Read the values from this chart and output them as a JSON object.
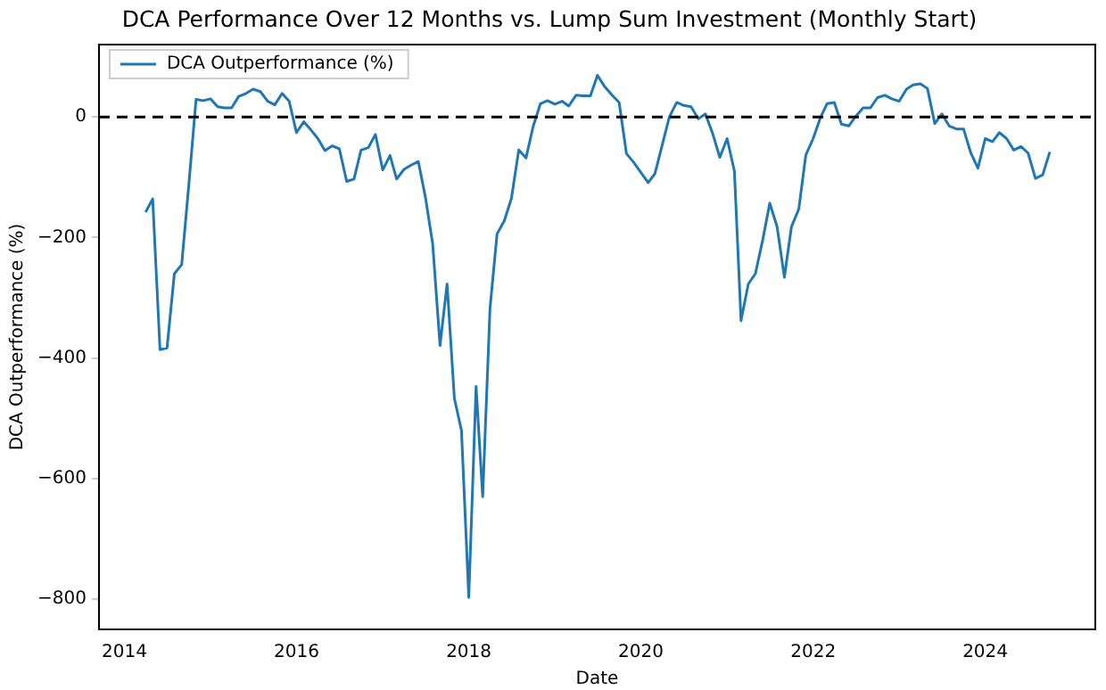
{
  "chart_data": {
    "type": "line",
    "title": "DCA Performance Over 12 Months vs. Lump Sum Investment (Monthly Start)",
    "xlabel": "Date",
    "ylabel": "DCA Outperformance (%)",
    "x": [
      "2014-04",
      "2014-05",
      "2014-06",
      "2014-07",
      "2014-08",
      "2014-09",
      "2014-10",
      "2014-11",
      "2014-12",
      "2015-01",
      "2015-02",
      "2015-03",
      "2015-04",
      "2015-05",
      "2015-06",
      "2015-07",
      "2015-08",
      "2015-09",
      "2015-10",
      "2015-11",
      "2015-12",
      "2016-01",
      "2016-02",
      "2016-03",
      "2016-04",
      "2016-05",
      "2016-06",
      "2016-07",
      "2016-08",
      "2016-09",
      "2016-10",
      "2016-11",
      "2016-12",
      "2017-01",
      "2017-02",
      "2017-03",
      "2017-04",
      "2017-05",
      "2017-06",
      "2017-07",
      "2017-08",
      "2017-09",
      "2017-10",
      "2017-11",
      "2017-12",
      "2018-01",
      "2018-02",
      "2018-03",
      "2018-04",
      "2018-05",
      "2018-06",
      "2018-07",
      "2018-08",
      "2018-09",
      "2018-10",
      "2018-11",
      "2018-12",
      "2019-01",
      "2019-02",
      "2019-03",
      "2019-04",
      "2019-05",
      "2019-06",
      "2019-07",
      "2019-08",
      "2019-09",
      "2019-10",
      "2019-11",
      "2019-12",
      "2020-01",
      "2020-02",
      "2020-03",
      "2020-04",
      "2020-05",
      "2020-06",
      "2020-07",
      "2020-08",
      "2020-09",
      "2020-10",
      "2020-11",
      "2020-12",
      "2021-01",
      "2021-02",
      "2021-03",
      "2021-04",
      "2021-05",
      "2021-06",
      "2021-07",
      "2021-08",
      "2021-09",
      "2021-10",
      "2021-11",
      "2021-12",
      "2022-01",
      "2022-02",
      "2022-03",
      "2022-04",
      "2022-05",
      "2022-06",
      "2022-07",
      "2022-08",
      "2022-09",
      "2022-10",
      "2022-11",
      "2022-12",
      "2023-01",
      "2023-02",
      "2023-03",
      "2023-04",
      "2023-05",
      "2023-06",
      "2023-07",
      "2023-08",
      "2023-09",
      "2023-10",
      "2023-11",
      "2023-12",
      "2024-01",
      "2024-02",
      "2024-03",
      "2024-04",
      "2024-05",
      "2024-06",
      "2024-07",
      "2024-08",
      "2024-09",
      "2024-10"
    ],
    "series": [
      {
        "name": "DCA Outperformance (%)",
        "color": "#1f77b4",
        "values": [
          -158,
          -136,
          -386,
          -383,
          -260,
          -245,
          -114,
          29,
          27,
          30,
          17,
          15,
          15,
          34,
          39,
          46,
          42,
          26,
          20,
          39,
          26,
          -26,
          -8,
          -21,
          -36,
          -56,
          -48,
          -53,
          -107,
          -103,
          -55,
          -51,
          -29,
          -88,
          -64,
          -103,
          -87,
          -80,
          -74,
          -133,
          -211,
          -379,
          -277,
          -467,
          -520,
          -797,
          -447,
          -630,
          -318,
          -194,
          -172,
          -135,
          -55,
          -68,
          -16,
          22,
          27,
          21,
          26,
          18,
          36,
          35,
          35,
          69,
          50,
          36,
          24,
          -61,
          -75,
          -92,
          -109,
          -94,
          -46,
          0,
          24,
          19,
          17,
          -3,
          5,
          -28,
          -67,
          -36,
          -90,
          -338,
          -277,
          -260,
          -204,
          -143,
          -182,
          -266,
          -182,
          -153,
          -63,
          -36,
          -1,
          22,
          24,
          -12,
          -15,
          1,
          15,
          15,
          32,
          36,
          30,
          26,
          46,
          53,
          55,
          47,
          -11,
          5,
          -15,
          -20,
          -20,
          -60,
          -85,
          -36,
          -41,
          -26,
          -36,
          -55,
          -49,
          -60,
          -102,
          -96,
          -58
        ]
      }
    ],
    "xlim": [
      "2013-09-15",
      "2025-04-12"
    ],
    "xticks": [
      "2014",
      "2016",
      "2018",
      "2020",
      "2022",
      "2024"
    ],
    "ylim": [
      -850,
      120
    ],
    "yticks": [
      -800,
      -600,
      -400,
      -200,
      0
    ],
    "ref_lines": [
      {
        "axis": "y",
        "value": 0,
        "color": "#000000",
        "line_style": "dashed"
      }
    ],
    "legend": "top left",
    "grid": false,
    "marker": "none",
    "line_style": "solid"
  }
}
